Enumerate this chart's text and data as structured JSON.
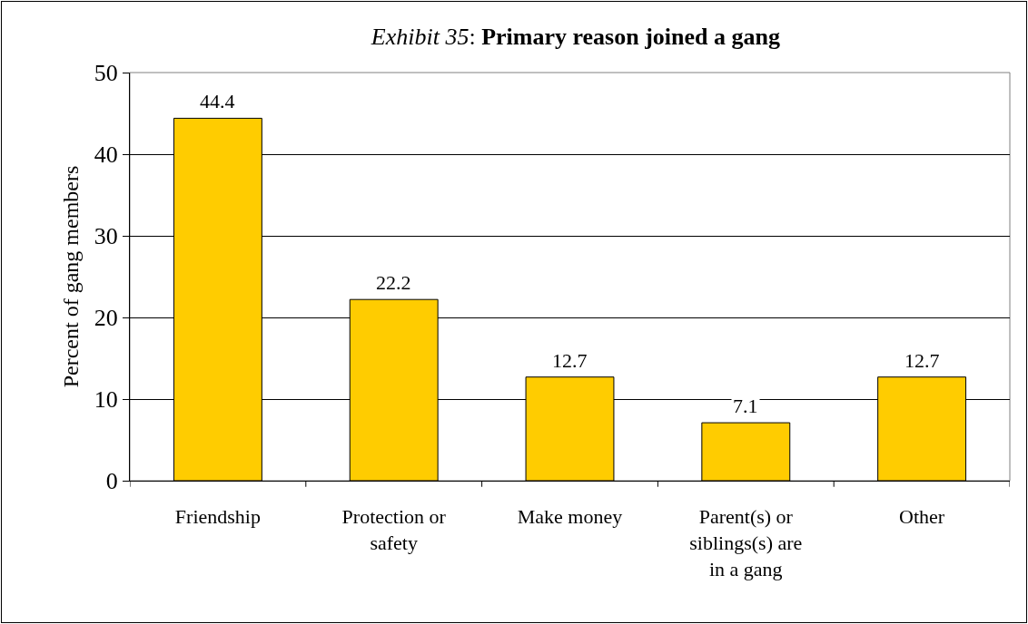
{
  "chart_data": {
    "type": "bar",
    "title": "Exhibit 35: Primary reason joined a gang",
    "ylabel": "Percent of gang members",
    "categories": [
      "Friendship",
      "Protection or safety",
      "Make money",
      "Parent(s) or siblings(s) are in a gang",
      "Other"
    ],
    "values": [
      44.4,
      22.2,
      12.7,
      7.1,
      12.7
    ],
    "color": "#ffcc00",
    "ylim": [
      0,
      50
    ],
    "yticks": [
      0,
      10,
      20,
      30,
      40,
      50
    ],
    "grid": "y",
    "data_labels": true,
    "legend": false
  }
}
